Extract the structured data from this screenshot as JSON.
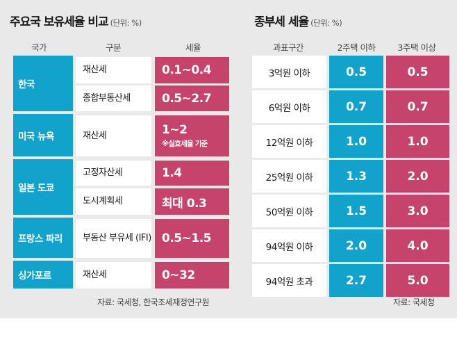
{
  "chart_data": [
    {
      "type": "table",
      "title": "주요국 보유세율 비교",
      "unit": "(단위: %)",
      "headers": [
        "국가",
        "구분",
        "세율"
      ],
      "rows": [
        {
          "country": "한국",
          "type": "재산세",
          "rate": "0.1~0.4",
          "note": ""
        },
        {
          "country": "",
          "type": "종합부동산세",
          "rate": "0.5~2.7",
          "note": ""
        },
        {
          "country": "미국 뉴욕",
          "type": "재산세",
          "rate": "1~2",
          "note": "※실효세율 기준"
        },
        {
          "country": "일본 도쿄",
          "type": "고정자산세",
          "rate": "1.4",
          "note": ""
        },
        {
          "country": "",
          "type": "도시계획세",
          "rate": "최대 0.3",
          "note": ""
        },
        {
          "country": "프랑스 파리",
          "type": "부동산 부유세 (IFI)",
          "rate": "0.5~1.5",
          "note": ""
        },
        {
          "country": "싱가포르",
          "type": "재산세",
          "rate": "0~32",
          "note": ""
        }
      ],
      "source": "자료: 국세청, 한국조세재정연구원"
    },
    {
      "type": "table",
      "title": "종부세 세율",
      "unit": "(단위: %)",
      "headers": [
        "과표구간",
        "2주택 이하",
        "3주택 이상"
      ],
      "categories": [
        "3억원 이하",
        "6억원 이하",
        "12억원 이하",
        "25억원 이하",
        "50억원 이하",
        "94억원 이하",
        "94억원 초과"
      ],
      "series": [
        {
          "name": "2주택 이하",
          "values": [
            "0.5",
            "0.7",
            "1.0",
            "1.3",
            "1.5",
            "2.0",
            "2.7"
          ]
        },
        {
          "name": "3주택 이상",
          "values": [
            "0.5",
            "0.7",
            "1.0",
            "2.0",
            "3.0",
            "4.0",
            "5.0"
          ]
        }
      ],
      "source": "자료: 국세청"
    }
  ],
  "colors": {
    "blue": "#12a3cc",
    "pink": "#c6436c",
    "background": "#e9e9e9"
  }
}
